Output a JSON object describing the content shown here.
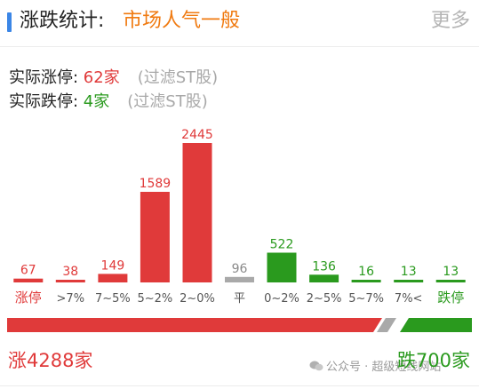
{
  "header": {
    "title": "涨跌统计:",
    "mood": "市场人气一般",
    "more_label": "更多"
  },
  "stats": {
    "limit_up_label": "实际涨停: ",
    "limit_up_value": "62家",
    "limit_down_label": "实际跌停: ",
    "limit_down_value": "4家",
    "filter_note": "(过滤ST股)"
  },
  "colors": {
    "up": "#e03a3a",
    "down": "#2a9a1e",
    "flat": "#a9a9a9",
    "mood": "#f07a10",
    "accent": "#3b86e6"
  },
  "chart_data": {
    "type": "bar",
    "categories": [
      "涨停",
      ">7%",
      "7~5%",
      "5~2%",
      "2~0%",
      "平",
      "0~2%",
      "2~5%",
      "5~7%",
      "7%<",
      "跌停"
    ],
    "values": [
      67,
      38,
      149,
      1589,
      2445,
      96,
      522,
      136,
      16,
      13,
      13
    ],
    "groups": [
      "up",
      "up",
      "up",
      "up",
      "up",
      "flat",
      "down",
      "down",
      "down",
      "down",
      "down"
    ]
  },
  "breadth": {
    "up_label": "涨4288家",
    "down_label": "跌700家",
    "up_count": 4288,
    "flat_count": 96,
    "down_count": 700
  },
  "watermark": {
    "icon": "wechat-icon",
    "text": "公众号 · 超级短线网站"
  }
}
